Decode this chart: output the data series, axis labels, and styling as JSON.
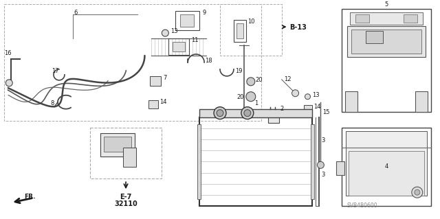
{
  "background_color": "#ffffff",
  "diagram_color": "#1a1a1a",
  "gray": "#888888",
  "light_gray": "#cccccc",
  "dashed_color": "#999999",
  "ref_label": "B-13",
  "inset_label_line1": "E-7",
  "inset_label_line2": "32110",
  "fr_label": "FR.",
  "diagram_code": "SVB4B0600",
  "figsize": [
    6.4,
    3.19
  ],
  "dpi": 100
}
